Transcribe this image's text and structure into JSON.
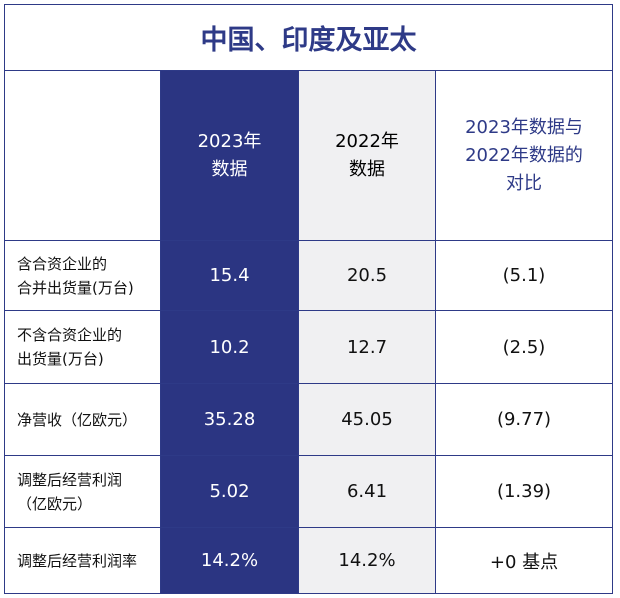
{
  "table": {
    "title": "中国、印度及亚太",
    "columns": [
      [
        "2023年",
        "数据"
      ],
      [
        "2022年",
        "数据"
      ],
      [
        "2023年数据与",
        "2022年数据的",
        "对比"
      ]
    ],
    "rows": [
      {
        "label": [
          "含合资企业的",
          "合并出货量(万台)"
        ],
        "cells": [
          "15.4",
          "20.5",
          "(5.1)"
        ]
      },
      {
        "label": [
          "不含合资企业的",
          "出货量(万台)"
        ],
        "cells": [
          "10.2",
          "12.7",
          "(2.5)"
        ]
      },
      {
        "label": [
          "净营收（亿欧元）"
        ],
        "cells": [
          "35.28",
          "45.05",
          "(9.77)"
        ]
      },
      {
        "label": [
          "调整后经营利润",
          "（亿欧元）"
        ],
        "cells": [
          "5.02",
          "6.41",
          "(1.39)"
        ]
      },
      {
        "label": [
          "调整后经营利润率"
        ],
        "cells": [
          "14.2%",
          "14.2%",
          "+0 基点"
        ]
      }
    ]
  }
}
